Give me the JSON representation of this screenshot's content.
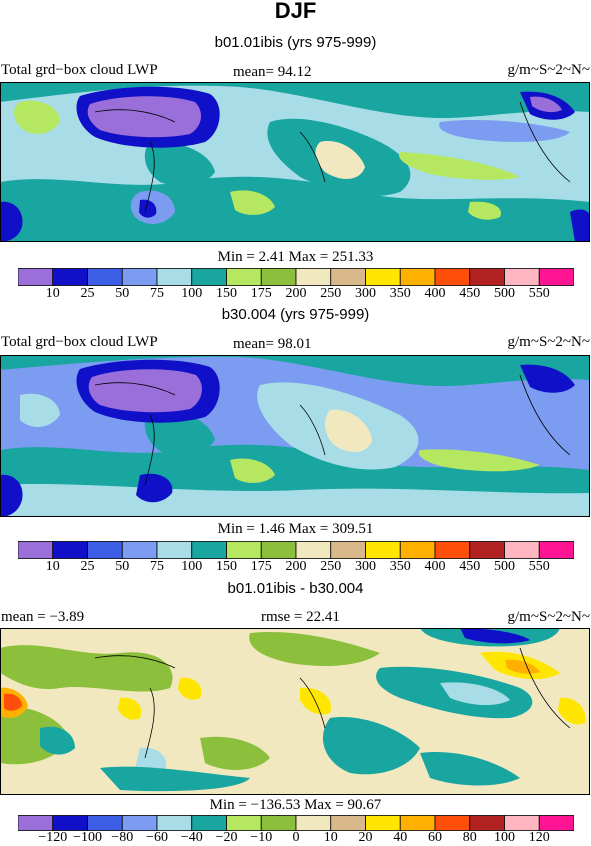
{
  "page": {
    "title": "DJF"
  },
  "panels": [
    {
      "title": "b01.01ibis (yrs 975-999)",
      "left_label": "Total grd−box cloud LWP",
      "center_label": "mean=  94.12",
      "units": "g/m~S~2~N~",
      "minmax": "Min =   2.41 Max = 251.33",
      "colorbar_ticks": [
        "10",
        "25",
        "50",
        "75",
        "100",
        "150",
        "175",
        "200",
        "250",
        "300",
        "350",
        "400",
        "450",
        "500",
        "550"
      ]
    },
    {
      "title": "b30.004 (yrs 975-999)",
      "left_label": "Total grd−box cloud LWP",
      "center_label": "mean=  98.01",
      "units": "g/m~S~2~N~",
      "minmax": "Min =   1.46 Max = 309.51",
      "colorbar_ticks": [
        "10",
        "25",
        "50",
        "75",
        "100",
        "150",
        "175",
        "200",
        "250",
        "300",
        "350",
        "400",
        "450",
        "500",
        "550"
      ]
    },
    {
      "title": "b01.01ibis - b30.004",
      "left_label": "mean =  −3.89",
      "center_label": "rmse =  22.41",
      "units": "g/m~S~2~N~",
      "minmax": "Min = −136.53 Max =  90.67",
      "colorbar_ticks": [
        "−120",
        "−100",
        "−80",
        "−60",
        "−40",
        "−20",
        "−10",
        "0",
        "10",
        "20",
        "40",
        "60",
        "80",
        "100",
        "120"
      ]
    }
  ],
  "colors": {
    "levels": [
      "#9b6fd9",
      "#1010c8",
      "#3d5ee6",
      "#7b9cf0",
      "#a8dde8",
      "#1aa6a0",
      "#b5e860",
      "#8cbf3c",
      "#f2e8c0",
      "#d9b98a",
      "#ffe600",
      "#ffb000",
      "#ff4d0a",
      "#b22222",
      "#ffb6c1",
      "#ff1493"
    ]
  },
  "chart_data": [
    {
      "type": "heatmap",
      "title": "b01.01ibis (yrs 975-999)",
      "variable": "Total grd−box cloud LWP",
      "units": "g/m~S~2~N~",
      "mean": 94.12,
      "min": 2.41,
      "max": 251.33,
      "levels": [
        10,
        25,
        50,
        75,
        100,
        150,
        175,
        200,
        250,
        300,
        350,
        400,
        450,
        500,
        550
      ]
    },
    {
      "type": "heatmap",
      "title": "b30.004 (yrs 975-999)",
      "variable": "Total grd−box cloud LWP",
      "units": "g/m~S~2~N~",
      "mean": 98.01,
      "min": 1.46,
      "max": 309.51,
      "levels": [
        10,
        25,
        50,
        75,
        100,
        150,
        175,
        200,
        250,
        300,
        350,
        400,
        450,
        500,
        550
      ]
    },
    {
      "type": "heatmap",
      "title": "b01.01ibis - b30.004",
      "units": "g/m~S~2~N~",
      "mean": -3.89,
      "rmse": 22.41,
      "min": -136.53,
      "max": 90.67,
      "levels": [
        -120,
        -100,
        -80,
        -60,
        -40,
        -20,
        -10,
        0,
        10,
        20,
        40,
        60,
        80,
        100,
        120
      ]
    }
  ]
}
